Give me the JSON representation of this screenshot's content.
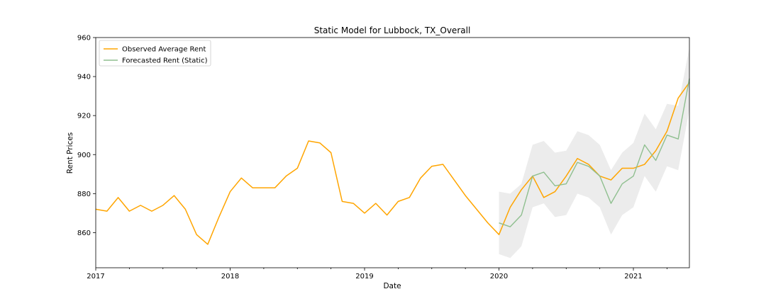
{
  "chart_data": {
    "type": "line",
    "title": "Static Model for Lubbock, TX_Overall",
    "xlabel": "Date",
    "ylabel": "Rent Prices",
    "xlim": [
      "2017-01",
      "2021-06"
    ],
    "ylim": [
      842,
      960
    ],
    "y_ticks": [
      860,
      880,
      900,
      920,
      940,
      960
    ],
    "x_ticks": [
      {
        "date": "2017-01",
        "label": "2017"
      },
      {
        "date": "2018-01",
        "label": "2018"
      },
      {
        "date": "2019-01",
        "label": "2019"
      },
      {
        "date": "2020-01",
        "label": "2020"
      },
      {
        "date": "2021-01",
        "label": "2021"
      }
    ],
    "grid": false,
    "legend_position": "top-left",
    "series": [
      {
        "name": "Observed Average Rent",
        "color": "#ffa500",
        "x": [
          "2017-01",
          "2017-02",
          "2017-03",
          "2017-04",
          "2017-05",
          "2017-06",
          "2017-07",
          "2017-08",
          "2017-09",
          "2017-10",
          "2017-11",
          "2017-12",
          "2018-01",
          "2018-02",
          "2018-03",
          "2018-04",
          "2018-05",
          "2018-06",
          "2018-07",
          "2018-08",
          "2018-09",
          "2018-10",
          "2018-11",
          "2018-12",
          "2019-01",
          "2019-02",
          "2019-03",
          "2019-04",
          "2019-05",
          "2019-06",
          "2019-07",
          "2019-08",
          "2019-09",
          "2019-10",
          "2019-11",
          "2019-12",
          "2020-01",
          "2020-02",
          "2020-03",
          "2020-04",
          "2020-05",
          "2020-06",
          "2020-07",
          "2020-08",
          "2020-09",
          "2020-10",
          "2020-11",
          "2020-12",
          "2021-01",
          "2021-02",
          "2021-03",
          "2021-04",
          "2021-05",
          "2021-06"
        ],
        "values": [
          872,
          871,
          878,
          871,
          874,
          871,
          874,
          879,
          872,
          859,
          854,
          868,
          881,
          888,
          883,
          883,
          883,
          889,
          893,
          907,
          906,
          901,
          876,
          875,
          870,
          875,
          869,
          876,
          878,
          888,
          894,
          895,
          887,
          879,
          872,
          865,
          859,
          873,
          882,
          889,
          878,
          881,
          889,
          898,
          895,
          889,
          887,
          893,
          893,
          895,
          902,
          912,
          929,
          937
        ]
      },
      {
        "name": "Forecasted Rent (Static)",
        "color": "#8fbf8f",
        "x": [
          "2020-01",
          "2020-02",
          "2020-03",
          "2020-04",
          "2020-05",
          "2020-06",
          "2020-07",
          "2020-08",
          "2020-09",
          "2020-10",
          "2020-11",
          "2020-12",
          "2021-01",
          "2021-02",
          "2021-03",
          "2021-04",
          "2021-05",
          "2021-06"
        ],
        "values": [
          865,
          863,
          869,
          889,
          891,
          884,
          885,
          896,
          894,
          889,
          875,
          885,
          889,
          905,
          897,
          910,
          908,
          939
        ]
      }
    ],
    "confidence_band": {
      "color": "#dcdcdc",
      "x": [
        "2020-01",
        "2020-02",
        "2020-03",
        "2020-04",
        "2020-05",
        "2020-06",
        "2020-07",
        "2020-08",
        "2020-09",
        "2020-10",
        "2020-11",
        "2020-12",
        "2021-01",
        "2021-02",
        "2021-03",
        "2021-04",
        "2021-05",
        "2021-06"
      ],
      "upper": [
        881,
        880,
        885,
        905,
        907,
        901,
        902,
        912,
        910,
        905,
        892,
        901,
        906,
        921,
        913,
        926,
        925,
        955
      ],
      "lower": [
        849,
        847,
        853,
        873,
        875,
        868,
        869,
        880,
        878,
        873,
        859,
        869,
        873,
        889,
        881,
        894,
        892,
        923
      ]
    }
  }
}
